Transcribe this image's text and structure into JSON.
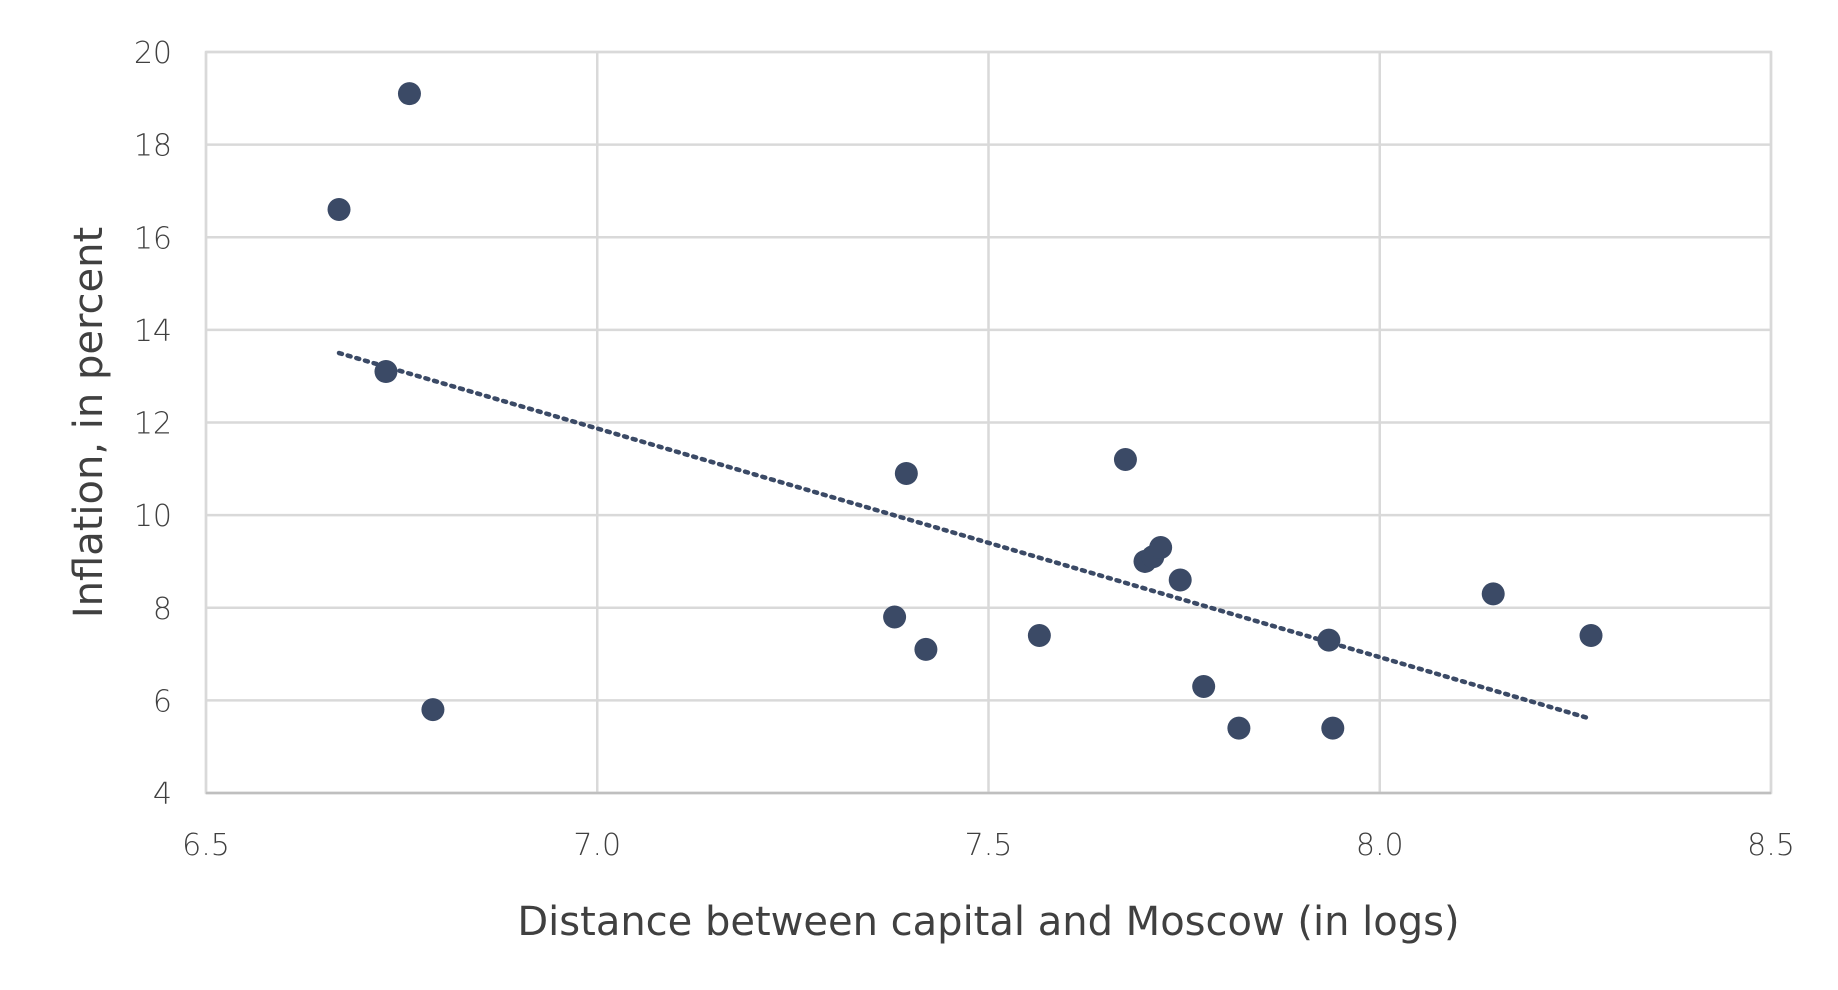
{
  "chart_data": {
    "type": "scatter",
    "xlabel": "Distance between capital and Moscow (in logs)",
    "ylabel": "Inflation, in percent",
    "xlim": [
      6.5,
      8.5
    ],
    "ylim": [
      4,
      20
    ],
    "x_ticks": [
      "6.5",
      "7.0",
      "7.5",
      "8.0",
      "8.5"
    ],
    "y_ticks": [
      "4",
      "6",
      "8",
      "10",
      "12",
      "14",
      "16",
      "18",
      "20"
    ],
    "grid": true,
    "legend": "none",
    "point_color": "#3b4a66",
    "trend_color": "#3b4a66",
    "points": [
      {
        "x": 6.67,
        "y": 16.6
      },
      {
        "x": 6.76,
        "y": 19.1
      },
      {
        "x": 6.73,
        "y": 13.1
      },
      {
        "x": 6.79,
        "y": 5.8
      },
      {
        "x": 7.38,
        "y": 7.8
      },
      {
        "x": 7.395,
        "y": 10.9
      },
      {
        "x": 7.42,
        "y": 7.1
      },
      {
        "x": 7.565,
        "y": 7.4
      },
      {
        "x": 7.675,
        "y": 11.2
      },
      {
        "x": 7.7,
        "y": 9.0
      },
      {
        "x": 7.71,
        "y": 9.1
      },
      {
        "x": 7.72,
        "y": 9.3
      },
      {
        "x": 7.745,
        "y": 8.6
      },
      {
        "x": 7.775,
        "y": 6.3
      },
      {
        "x": 7.82,
        "y": 5.4
      },
      {
        "x": 7.935,
        "y": 7.3
      },
      {
        "x": 7.94,
        "y": 5.4
      },
      {
        "x": 8.145,
        "y": 8.3
      },
      {
        "x": 8.27,
        "y": 7.4
      }
    ],
    "trendline": {
      "style": "dotted",
      "x": [
        6.67,
        8.27
      ],
      "y": [
        13.5,
        5.6
      ]
    }
  }
}
